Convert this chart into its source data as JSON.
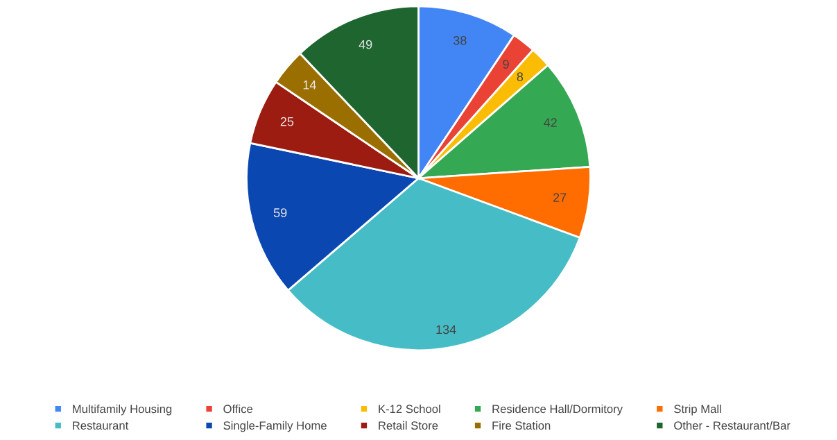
{
  "chart_data": {
    "type": "pie",
    "categories": [
      "Multifamily Housing",
      "Office",
      "K-12 School",
      "Residence Hall/Dormitory",
      "Strip Mall",
      "Restaurant",
      "Single-Family Home",
      "Retail Store",
      "Fire Station",
      "Other - Restaurant/Bar"
    ],
    "values": [
      38,
      9,
      8,
      42,
      27,
      134,
      59,
      25,
      14,
      49
    ],
    "colors": [
      "#4285f4",
      "#ea4335",
      "#fbbc04",
      "#34a853",
      "#ff6d01",
      "#46bdc6",
      "#0b47b0",
      "#9d1c12",
      "#9b6e00",
      "#1e6530"
    ],
    "data_labels": true,
    "legend": "bottom"
  }
}
